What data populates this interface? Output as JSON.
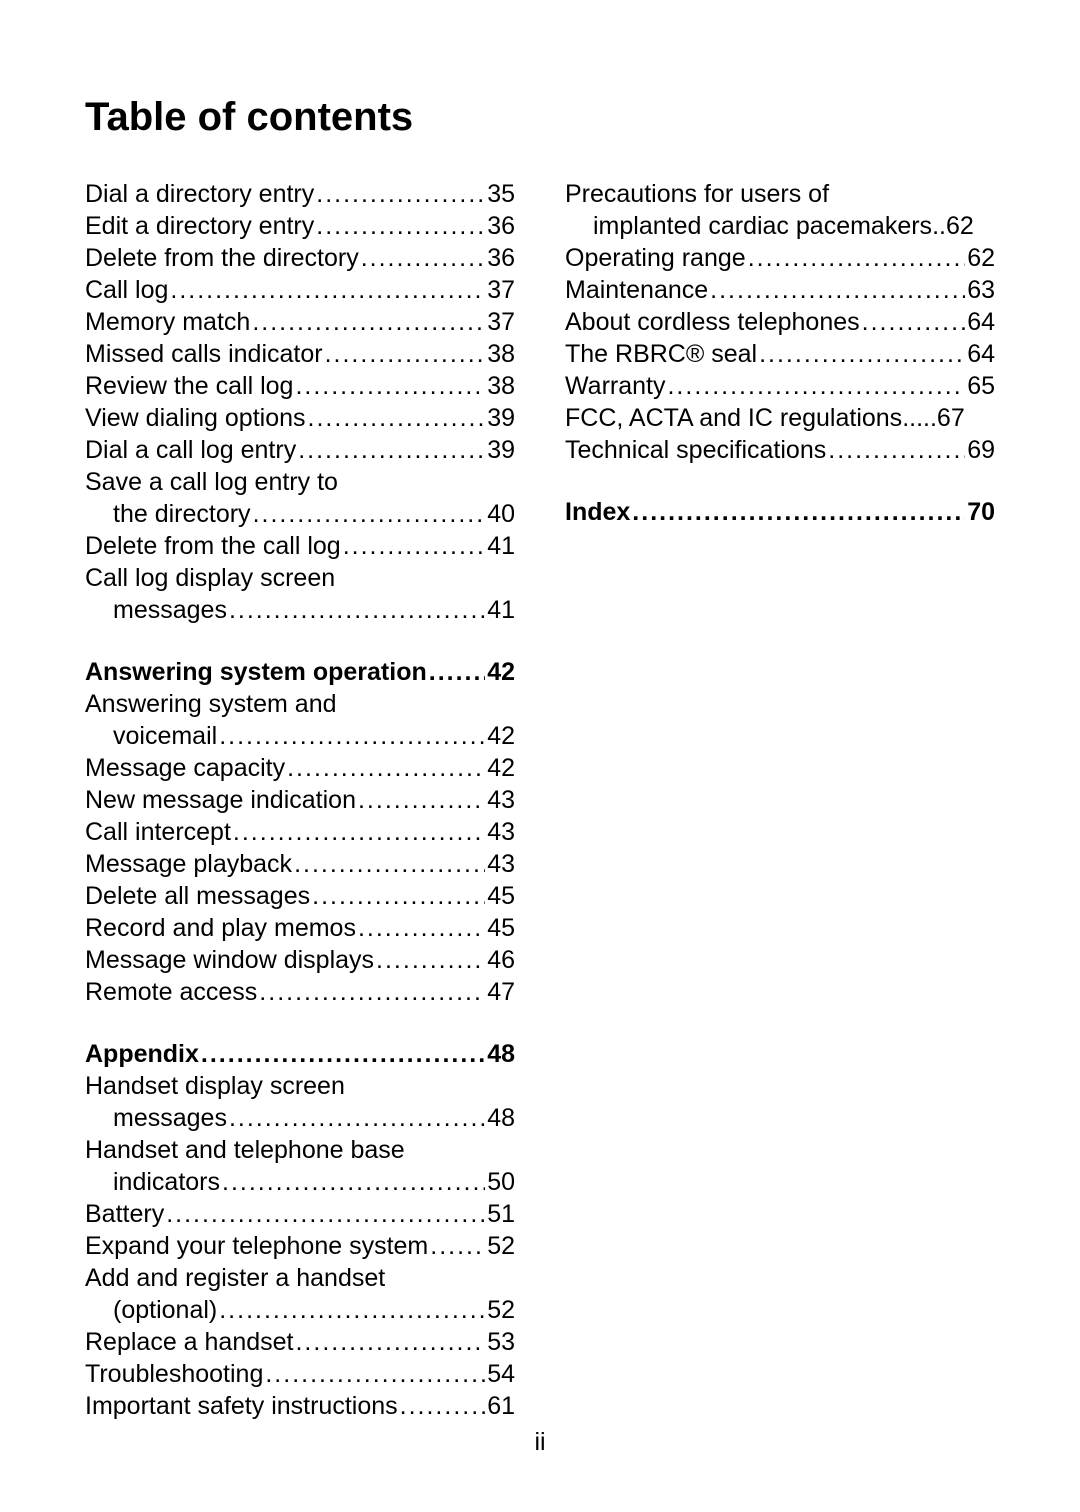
{
  "title": "Table of contents",
  "page_number": "ii",
  "left_column": [
    {
      "type": "item",
      "label": "Dial a directory entry",
      "page": "35"
    },
    {
      "type": "item",
      "label": "Edit a directory entry",
      "page": "36"
    },
    {
      "type": "item",
      "label": "Delete from the directory",
      "page": "36"
    },
    {
      "type": "item",
      "label": "Call log",
      "page": "37"
    },
    {
      "type": "item",
      "label": "Memory match",
      "page": "37"
    },
    {
      "type": "item",
      "label": "Missed calls indicator",
      "page": "38"
    },
    {
      "type": "item",
      "label": "Review the call log",
      "page": "38"
    },
    {
      "type": "item",
      "label": "View dialing options",
      "page": "39"
    },
    {
      "type": "item",
      "label": "Dial a call log entry",
      "page": "39"
    },
    {
      "type": "item",
      "label": "Save a call log entry to",
      "cont": true
    },
    {
      "type": "sub",
      "label": "the directory",
      "page": "40"
    },
    {
      "type": "item",
      "label": "Delete from the call log",
      "page": "41"
    },
    {
      "type": "item",
      "label": "Call log display screen",
      "cont": true
    },
    {
      "type": "sub",
      "label": "messages",
      "page": "41"
    },
    {
      "type": "section",
      "label": "Answering system operation",
      "page": "42"
    },
    {
      "type": "item",
      "label": "Answering system and",
      "cont": true
    },
    {
      "type": "sub",
      "label": "voicemail",
      "page": "42"
    },
    {
      "type": "item",
      "label": "Message capacity",
      "page": "42"
    },
    {
      "type": "item",
      "label": "New message indication",
      "page": "43"
    },
    {
      "type": "item",
      "label": "Call intercept",
      "page": "43"
    },
    {
      "type": "item",
      "label": "Message playback",
      "page": "43"
    },
    {
      "type": "item",
      "label": "Delete all messages",
      "page": "45"
    },
    {
      "type": "item",
      "label": "Record and play memos",
      "page": "45"
    },
    {
      "type": "item",
      "label": "Message window displays",
      "page": "46"
    },
    {
      "type": "item",
      "label": "Remote access",
      "page": "47"
    },
    {
      "type": "section",
      "label": "Appendix",
      "page": "48"
    },
    {
      "type": "item",
      "label": "Handset display screen",
      "cont": true
    },
    {
      "type": "sub",
      "label": "messages",
      "page": "48"
    },
    {
      "type": "item",
      "label": "Handset and telephone base",
      "cont": true
    },
    {
      "type": "sub",
      "label": "indicators",
      "page": "50"
    },
    {
      "type": "item",
      "label": "Battery",
      "page": "51"
    },
    {
      "type": "item",
      "label": "Expand your telephone system",
      "page": "52"
    },
    {
      "type": "item",
      "label": "Add and register a handset",
      "cont": true
    },
    {
      "type": "sub",
      "label": "(optional)",
      "page": "52"
    },
    {
      "type": "item",
      "label": "Replace a handset",
      "page": "53"
    },
    {
      "type": "item",
      "label": "Troubleshooting",
      "page": "54"
    },
    {
      "type": "item",
      "label": "Important safety instructions",
      "page": "61"
    }
  ],
  "right_column": [
    {
      "type": "item",
      "label": "Precautions for users of",
      "cont": true
    },
    {
      "type": "sub",
      "label": "implanted cardiac pacemakers",
      "page": "62",
      "tight": true
    },
    {
      "type": "item",
      "label": "Operating range",
      "page": "62"
    },
    {
      "type": "item",
      "label": "Maintenance",
      "page": "63"
    },
    {
      "type": "item",
      "label": "About cordless telephones",
      "page": "64"
    },
    {
      "type": "item",
      "label": "The RBRC® seal",
      "page": "64"
    },
    {
      "type": "item",
      "label": "Warranty",
      "page": "65"
    },
    {
      "type": "item",
      "label": "FCC, ACTA and IC regulations",
      "page": "67",
      "spaced": true
    },
    {
      "type": "item",
      "label": "Technical specifications",
      "page": "69"
    },
    {
      "type": "section",
      "label": "Index",
      "page": "70"
    }
  ]
}
